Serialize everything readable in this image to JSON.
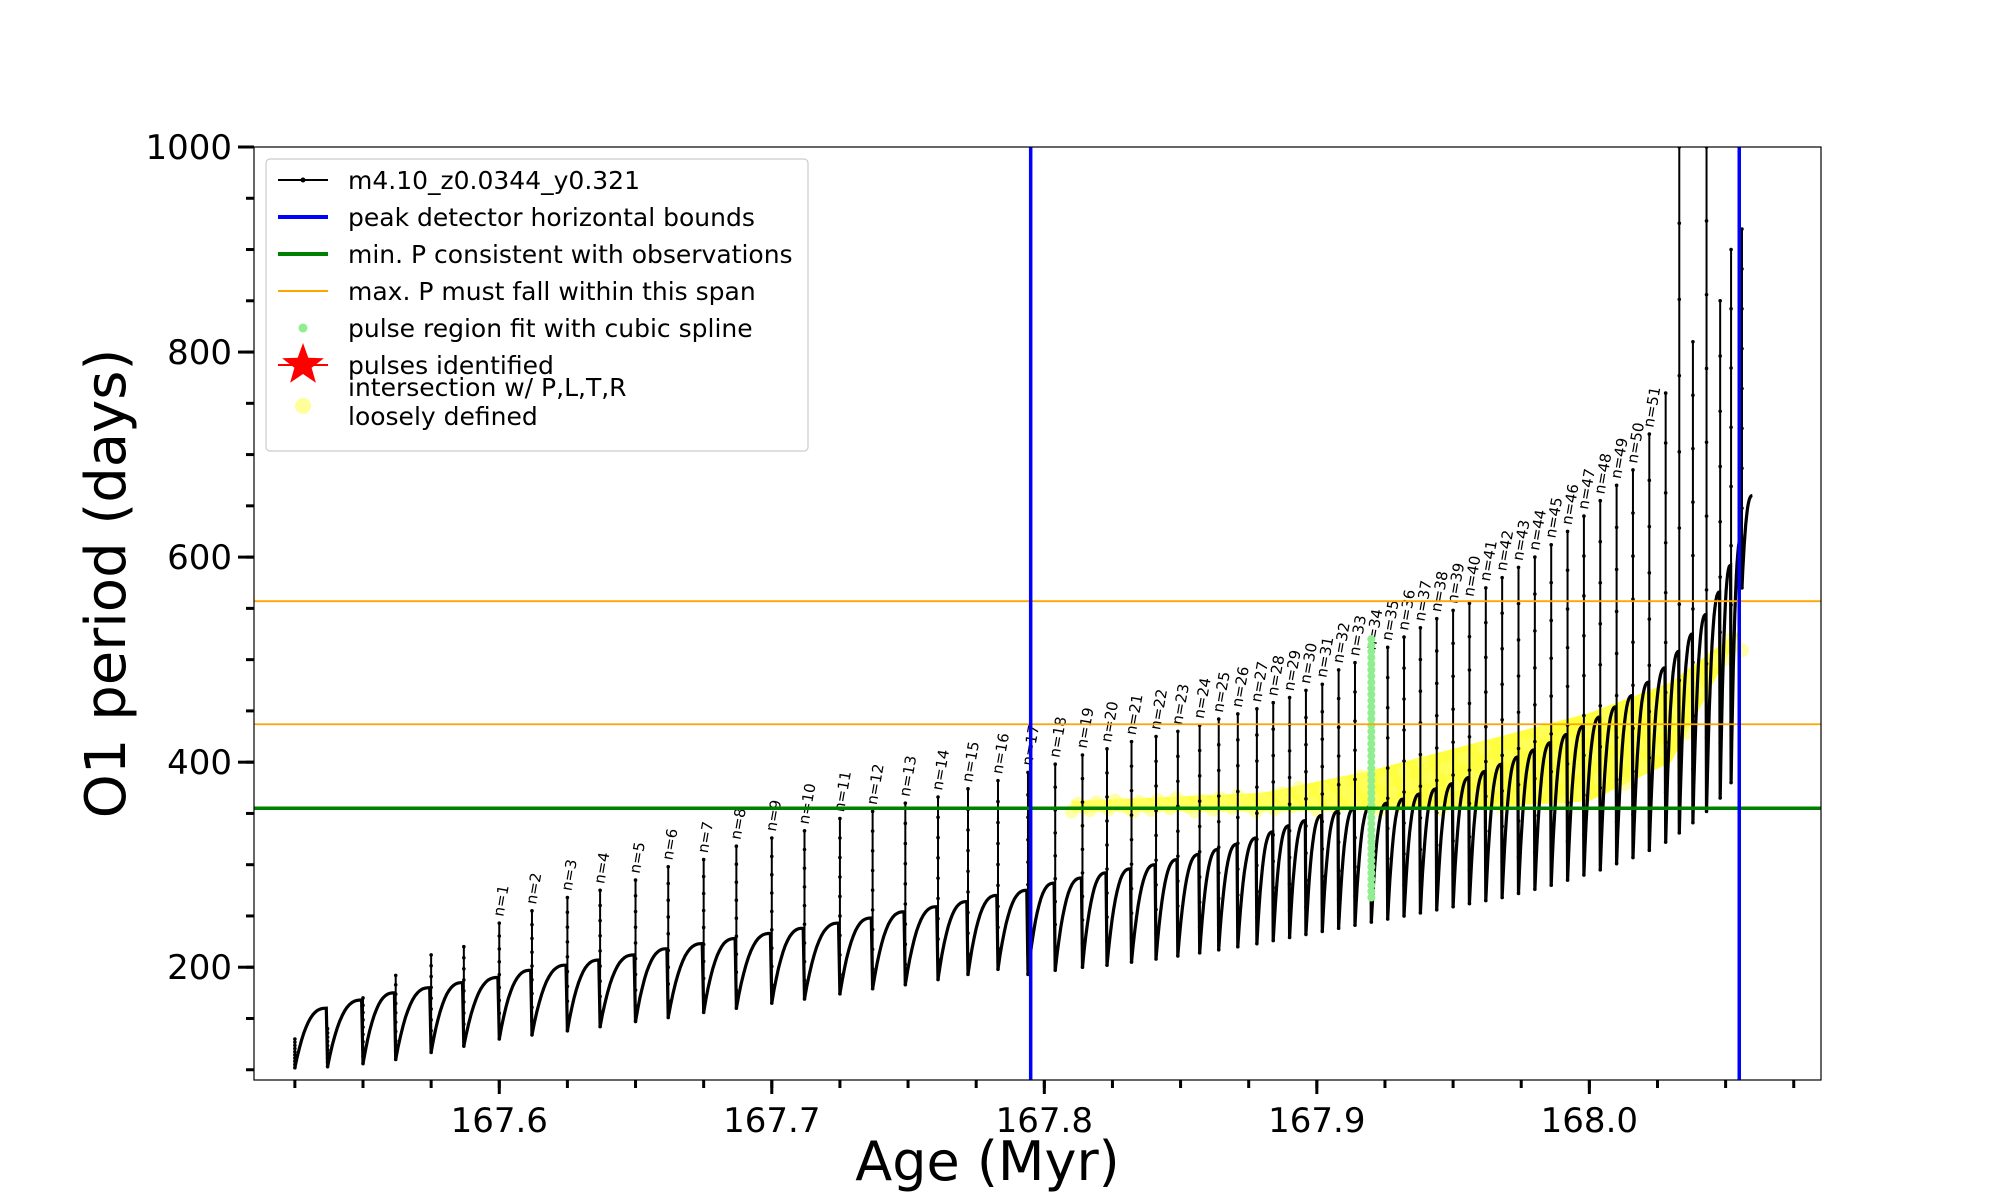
{
  "chart_data": {
    "type": "line",
    "title": "",
    "xlabel": "Age (Myr)",
    "ylabel": "O1 period (days)",
    "xlim": [
      167.51,
      168.085
    ],
    "ylim": [
      90,
      1000
    ],
    "x_ticks": [
      167.6,
      167.7,
      167.8,
      167.9,
      168.0
    ],
    "x_tick_labels": [
      "167.6",
      "167.7",
      "167.8",
      "167.9",
      "168.0"
    ],
    "y_ticks": [
      200,
      400,
      600,
      800,
      1000
    ],
    "y_tick_labels": [
      "200",
      "400",
      "600",
      "800",
      "1000"
    ],
    "grid": false,
    "legend_position": "upper-left",
    "legend": [
      {
        "label": "m4.10_z0.0344_y0.321",
        "marker": "line-dot",
        "color": "#000000"
      },
      {
        "label": "peak detector horizontal bounds",
        "marker": "line",
        "color": "#0000ff"
      },
      {
        "label": "min. P consistent with observations",
        "marker": "line",
        "color": "#008000"
      },
      {
        "label": "max. P must fall within this span",
        "marker": "line-thin",
        "color": "#ffa500"
      },
      {
        "label": "pulse region fit with cubic spline",
        "marker": "dot",
        "color": "#90ee90"
      },
      {
        "label": "pulses identified",
        "marker": "star",
        "color": "#ff0000"
      },
      {
        "label": "intersection w/ P,L,T,R\nloosely defined",
        "marker": "circle",
        "color": "#ffff99"
      }
    ],
    "vertical_lines": [
      {
        "x": 167.795,
        "color": "#0000ff",
        "label": "peak detector horizontal bounds"
      },
      {
        "x": 168.055,
        "color": "#0000ff",
        "label": "peak detector horizontal bounds"
      }
    ],
    "horizontal_lines": [
      {
        "y": 355,
        "color": "#008000",
        "label": "min. P consistent with observations"
      },
      {
        "y": 437,
        "color": "#ffa500",
        "label": "max. P must fall within this span"
      },
      {
        "y": 557,
        "color": "#ffa500",
        "label": "max. P must fall within this span"
      }
    ],
    "series": [
      {
        "name": "m4.10_z0.0344_y0.321",
        "color": "#000000",
        "pulses": [
          {
            "x": 167.525,
            "base": 102,
            "end": 160,
            "peak": 130
          },
          {
            "x": 167.537,
            "base": 103,
            "end": 168,
            "peak": 140
          },
          {
            "x": 167.55,
            "base": 106,
            "end": 175,
            "peak": 170
          },
          {
            "x": 167.562,
            "base": 110,
            "end": 180,
            "peak": 192
          },
          {
            "x": 167.575,
            "base": 117,
            "end": 185,
            "peak": 212
          },
          {
            "x": 167.587,
            "base": 123,
            "end": 190,
            "peak": 220
          },
          {
            "x": 167.6,
            "base": 130,
            "end": 197,
            "peak": 243,
            "label": "n=1"
          },
          {
            "x": 167.612,
            "base": 134,
            "end": 202,
            "peak": 255,
            "label": "n=2"
          },
          {
            "x": 167.625,
            "base": 138,
            "end": 207,
            "peak": 268,
            "label": "n=3"
          },
          {
            "x": 167.637,
            "base": 142,
            "end": 212,
            "peak": 275,
            "label": "n=4"
          },
          {
            "x": 167.65,
            "base": 147,
            "end": 218,
            "peak": 285,
            "label": "n=5"
          },
          {
            "x": 167.662,
            "base": 151,
            "end": 223,
            "peak": 298,
            "label": "n=6"
          },
          {
            "x": 167.675,
            "base": 156,
            "end": 228,
            "peak": 305,
            "label": "n=7"
          },
          {
            "x": 167.687,
            "base": 160,
            "end": 233,
            "peak": 318,
            "label": "n=8"
          },
          {
            "x": 167.7,
            "base": 165,
            "end": 238,
            "peak": 326,
            "label": "n=9"
          },
          {
            "x": 167.712,
            "base": 169,
            "end": 243,
            "peak": 333,
            "label": "n=10"
          },
          {
            "x": 167.725,
            "base": 174,
            "end": 248,
            "peak": 345,
            "label": "n=11"
          },
          {
            "x": 167.737,
            "base": 179,
            "end": 254,
            "peak": 352,
            "label": "n=12"
          },
          {
            "x": 167.749,
            "base": 183,
            "end": 259,
            "peak": 360,
            "label": "n=13"
          },
          {
            "x": 167.761,
            "base": 188,
            "end": 264,
            "peak": 366,
            "label": "n=14"
          },
          {
            "x": 167.772,
            "base": 193,
            "end": 270,
            "peak": 374,
            "label": "n=15"
          },
          {
            "x": 167.783,
            "base": 198,
            "end": 275,
            "peak": 382,
            "label": "n=16"
          },
          {
            "x": 167.794,
            "base": 193,
            "end": 282,
            "peak": 390,
            "label": "n=17"
          },
          {
            "x": 167.804,
            "base": 197,
            "end": 287,
            "peak": 398,
            "label": "n=18"
          },
          {
            "x": 167.814,
            "base": 200,
            "end": 292,
            "peak": 407,
            "label": "n=19"
          },
          {
            "x": 167.823,
            "base": 202,
            "end": 296,
            "peak": 413,
            "label": "n=20"
          },
          {
            "x": 167.832,
            "base": 205,
            "end": 300,
            "peak": 420,
            "label": "n=21"
          },
          {
            "x": 167.841,
            "base": 208,
            "end": 305,
            "peak": 425,
            "label": "n=22"
          },
          {
            "x": 167.849,
            "base": 211,
            "end": 310,
            "peak": 430,
            "label": "n=23"
          },
          {
            "x": 167.857,
            "base": 214,
            "end": 315,
            "peak": 436,
            "label": "n=24"
          },
          {
            "x": 167.864,
            "base": 217,
            "end": 320,
            "peak": 442,
            "label": "n=25"
          },
          {
            "x": 167.871,
            "base": 220,
            "end": 326,
            "peak": 447,
            "label": "n=26"
          },
          {
            "x": 167.878,
            "base": 223,
            "end": 332,
            "peak": 452,
            "label": "n=27"
          },
          {
            "x": 167.884,
            "base": 226,
            "end": 338,
            "peak": 458,
            "label": "n=28"
          },
          {
            "x": 167.89,
            "base": 229,
            "end": 343,
            "peak": 463,
            "label": "n=29"
          },
          {
            "x": 167.896,
            "base": 232,
            "end": 348,
            "peak": 470,
            "label": "n=30"
          },
          {
            "x": 167.902,
            "base": 235,
            "end": 352,
            "peak": 476,
            "label": "n=31"
          },
          {
            "x": 167.908,
            "base": 238,
            "end": 355,
            "peak": 490,
            "label": "n=32"
          },
          {
            "x": 167.914,
            "base": 241,
            "end": 357,
            "peak": 497,
            "label": "n=33"
          },
          {
            "x": 167.92,
            "base": 244,
            "end": 360,
            "peak": 503,
            "label": "n=34"
          },
          {
            "x": 167.926,
            "base": 247,
            "end": 364,
            "peak": 512,
            "label": "n=35"
          },
          {
            "x": 167.932,
            "base": 250,
            "end": 369,
            "peak": 522,
            "label": "n=36"
          },
          {
            "x": 167.938,
            "base": 253,
            "end": 374,
            "peak": 531,
            "label": "n=37"
          },
          {
            "x": 167.944,
            "base": 256,
            "end": 379,
            "peak": 540,
            "label": "n=38"
          },
          {
            "x": 167.95,
            "base": 259,
            "end": 385,
            "peak": 548,
            "label": "n=39"
          },
          {
            "x": 167.956,
            "base": 262,
            "end": 391,
            "peak": 555,
            "label": "n=40"
          },
          {
            "x": 167.962,
            "base": 265,
            "end": 398,
            "peak": 570,
            "label": "n=41"
          },
          {
            "x": 167.968,
            "base": 268,
            "end": 405,
            "peak": 580,
            "label": "n=42"
          },
          {
            "x": 167.974,
            "base": 272,
            "end": 412,
            "peak": 590,
            "label": "n=43"
          },
          {
            "x": 167.98,
            "base": 276,
            "end": 419,
            "peak": 600,
            "label": "n=44"
          },
          {
            "x": 167.986,
            "base": 280,
            "end": 427,
            "peak": 612,
            "label": "n=45"
          },
          {
            "x": 167.992,
            "base": 285,
            "end": 435,
            "peak": 625,
            "label": "n=46"
          },
          {
            "x": 167.998,
            "base": 290,
            "end": 444,
            "peak": 640,
            "label": "n=47"
          },
          {
            "x": 168.004,
            "base": 295,
            "end": 454,
            "peak": 655,
            "label": "n=48"
          },
          {
            "x": 168.01,
            "base": 301,
            "end": 465,
            "peak": 670,
            "label": "n=49"
          },
          {
            "x": 168.016,
            "base": 307,
            "end": 478,
            "peak": 685,
            "label": "n=50"
          },
          {
            "x": 168.022,
            "base": 314,
            "end": 492,
            "peak": 720,
            "label": "n=51"
          },
          {
            "x": 168.028,
            "base": 322,
            "end": 508,
            "peak": 760
          },
          {
            "x": 168.033,
            "base": 331,
            "end": 525,
            "peak": 1000
          },
          {
            "x": 168.038,
            "base": 341,
            "end": 544,
            "peak": 810
          },
          {
            "x": 168.043,
            "base": 352,
            "end": 566,
            "peak": 1000
          },
          {
            "x": 168.048,
            "base": 365,
            "end": 592,
            "peak": 850
          },
          {
            "x": 168.052,
            "base": 380,
            "end": 620,
            "peak": 900
          },
          {
            "x": 168.056,
            "base": 570,
            "end": 660,
            "peak": 920
          }
        ]
      },
      {
        "name": "pulse region fit with cubic spline",
        "color": "#90ee90",
        "x": [
          167.92,
          167.92
        ],
        "y": [
          268,
          520
        ]
      },
      {
        "name": "intersection w/ P,L,T,R loosely defined",
        "color": "#ffff99",
        "fill_region": {
          "x_start": 167.81,
          "x_end": 168.056,
          "lower": [
            [
              167.81,
              352
            ],
            [
              167.88,
              352
            ],
            [
              167.95,
              354
            ],
            [
              168.0,
              362
            ],
            [
              168.03,
              400
            ],
            [
              168.05,
              500
            ]
          ],
          "upper": [
            [
              167.81,
              362
            ],
            [
              167.88,
              370
            ],
            [
              167.92,
              392
            ],
            [
              167.96,
              420
            ],
            [
              168.0,
              448
            ],
            [
              168.03,
              478
            ],
            [
              168.056,
              530
            ]
          ]
        }
      }
    ]
  }
}
